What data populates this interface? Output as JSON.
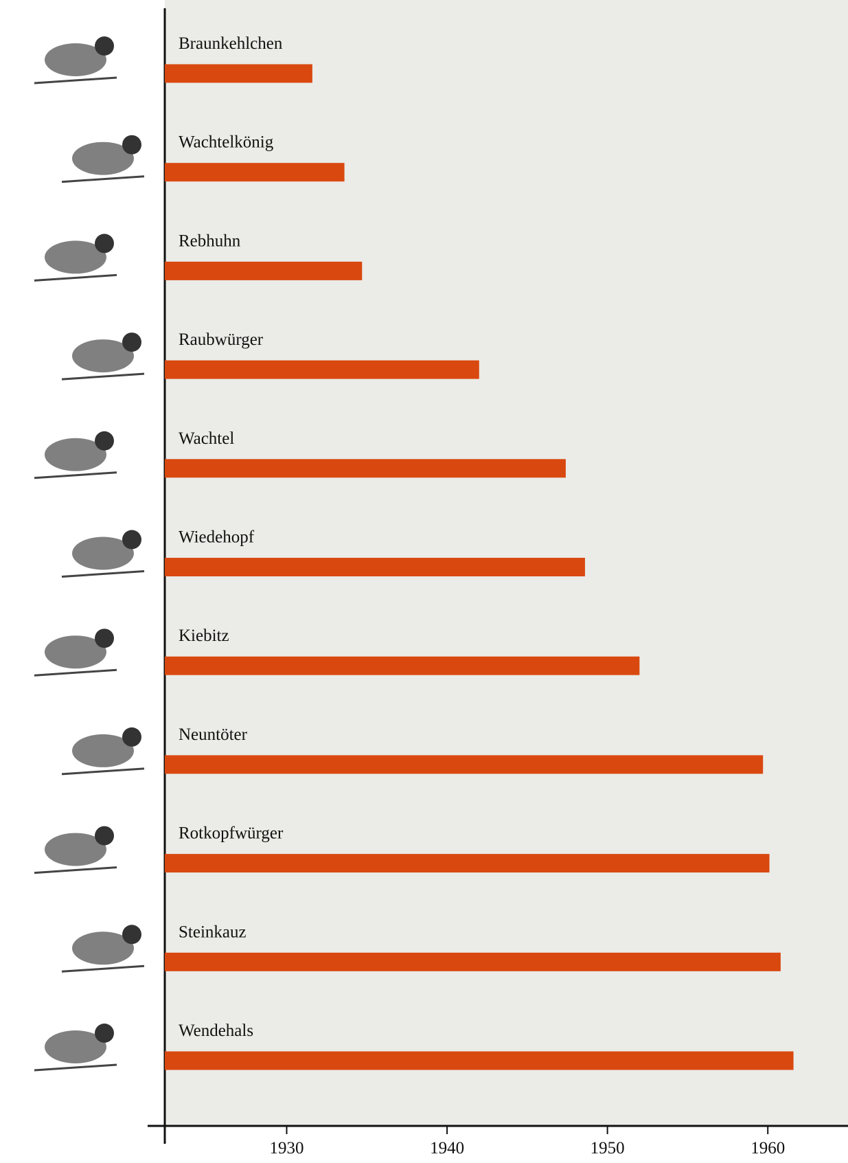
{
  "chart_data": {
    "type": "bar",
    "orientation": "horizontal",
    "categories": [
      "Braunkehlchen",
      "Wachtelkönig",
      "Rebhuhn",
      "Raubwürger",
      "Wachtel",
      "Wiedehopf",
      "Kiebitz",
      "Neuntöter",
      "Rotkopfwürger",
      "Steinkauz",
      "Wendehals"
    ],
    "values": [
      1931.6,
      1933.6,
      1934.7,
      1942.0,
      1947.4,
      1948.6,
      1952.0,
      1959.7,
      1960.1,
      1960.8,
      1961.6
    ],
    "color": "#d9480f",
    "xlim": [
      1922.4,
      1965
    ],
    "xticks": [
      1930,
      1940,
      1950,
      1960
    ],
    "grid": false
  }
}
